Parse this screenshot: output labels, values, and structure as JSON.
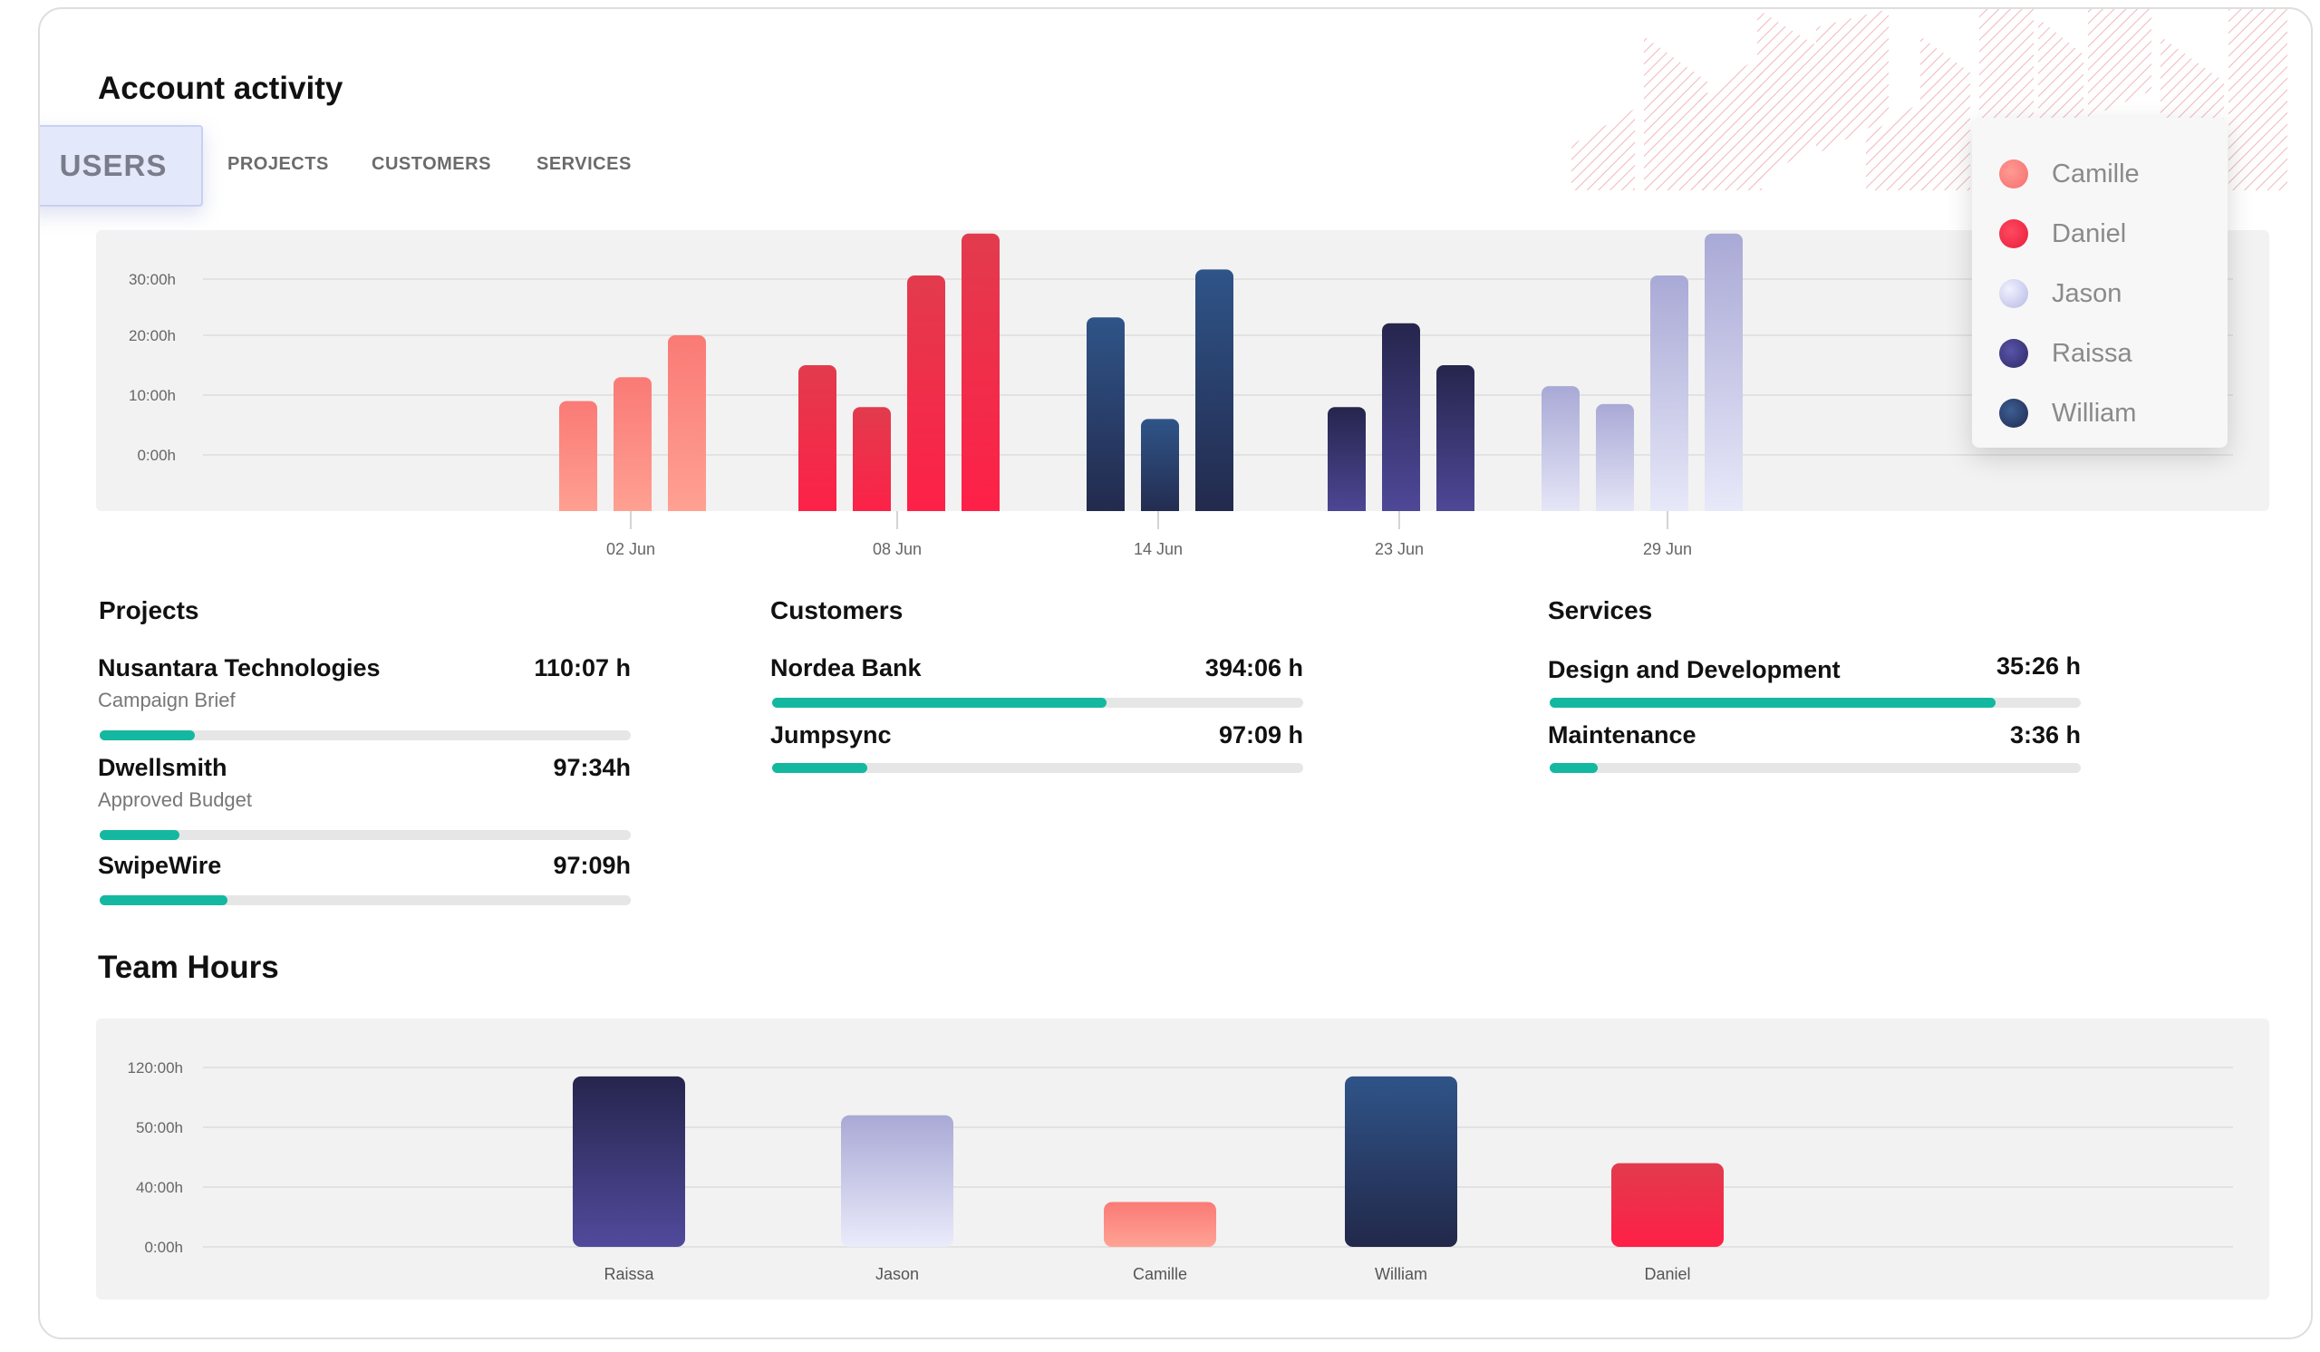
{
  "page_title": "Account activity",
  "tabs": [
    {
      "label": "USERS",
      "active": true
    },
    {
      "label": "PROJECTS",
      "active": false
    },
    {
      "label": "CUSTOMERS",
      "active": false
    },
    {
      "label": "SERVICES",
      "active": false
    }
  ],
  "legend": [
    {
      "name": "Camille",
      "color": "#fa7a76"
    },
    {
      "name": "Daniel",
      "color": "#f02a48"
    },
    {
      "name": "Jason",
      "color": "#c7c9ee"
    },
    {
      "name": "Raissa",
      "color": "#3f3a7e"
    },
    {
      "name": "William",
      "color": "#27345c"
    }
  ],
  "colors": {
    "Camille": [
      "#fa7a76",
      "#ffa394"
    ],
    "Daniel": [
      "#e23b4d",
      "#ff1f47"
    ],
    "Jason": [
      "#a9a9d6",
      "#eaebfa"
    ],
    "Raissa": [
      "#26254d",
      "#514a9c"
    ],
    "William": [
      "#2f5488",
      "#22284a"
    ],
    "accent": "#14b8a0"
  },
  "chart_data": [
    {
      "type": "bar",
      "ytick_labels": [
        "30:00h",
        "20:00h",
        "10:00h",
        "0:00h"
      ],
      "categories": [
        "02 Jun",
        "08 Jun",
        "14 Jun",
        "23 Jun",
        "29 Jun"
      ],
      "groups": [
        {
          "category": "02 Jun",
          "bars": [
            {
              "series": "Camille",
              "value": 0.9
            },
            {
              "series": "Camille",
              "value": 1.3
            },
            {
              "series": "Camille",
              "value": 2.0
            }
          ]
        },
        {
          "category": "08 Jun",
          "bars": [
            {
              "series": "Daniel",
              "value": 1.5
            },
            {
              "series": "Daniel",
              "value": 0.8
            },
            {
              "series": "Daniel",
              "value": 3.0
            },
            {
              "series": "Daniel",
              "value": 3.7
            }
          ]
        },
        {
          "category": "14 Jun",
          "bars": [
            {
              "series": "William",
              "value": 2.3
            },
            {
              "series": "William",
              "value": 0.6
            },
            {
              "series": "William",
              "value": 3.1
            }
          ]
        },
        {
          "category": "23 Jun",
          "bars": [
            {
              "series": "Raissa",
              "value": 0.8
            },
            {
              "series": "Raissa",
              "value": 2.2
            },
            {
              "series": "Raissa",
              "value": 1.5
            }
          ]
        },
        {
          "category": "29 Jun",
          "bars": [
            {
              "series": "Jason",
              "value": 1.15
            },
            {
              "series": "Jason",
              "value": 0.85
            },
            {
              "series": "Jason",
              "value": 3.0
            },
            {
              "series": "Jason",
              "value": 3.7
            }
          ]
        }
      ]
    },
    {
      "type": "bar",
      "ytick_labels": [
        "120:00h",
        "50:00h",
        "40:00h",
        "0:00h"
      ],
      "categories": [
        "Raissa",
        "Jason",
        "Camille",
        "William",
        "Daniel"
      ],
      "values": [
        2.85,
        2.2,
        0.75,
        2.85,
        1.4
      ],
      "series_colors": [
        "Raissa",
        "Jason",
        "Camille",
        "William",
        "Daniel"
      ]
    }
  ],
  "projects": {
    "title": "Projects",
    "items": [
      {
        "name": "Nusantara Technologies",
        "value": "110:07 h",
        "subtitle": "Campaign Brief",
        "progress": 0.18
      },
      {
        "name": "Dwellsmith",
        "value": "97:34h",
        "subtitle": "Approved Budget",
        "progress": 0.15
      },
      {
        "name": "SwipeWire",
        "value": "97:09h",
        "subtitle": "",
        "progress": 0.24
      }
    ]
  },
  "customers": {
    "title": "Customers",
    "items": [
      {
        "name": "Nordea Bank",
        "value": "394:06 h",
        "progress": 0.63
      },
      {
        "name": "Jumpsync",
        "value": "97:09 h",
        "progress": 0.18
      }
    ]
  },
  "services": {
    "title": "Services",
    "items": [
      {
        "name": "Design and Development",
        "value": "35:26 h",
        "progress": 0.84
      },
      {
        "name": "Maintenance",
        "value": "3:36 h",
        "progress": 0.09
      }
    ]
  },
  "team_hours": {
    "title": "Team Hours"
  }
}
